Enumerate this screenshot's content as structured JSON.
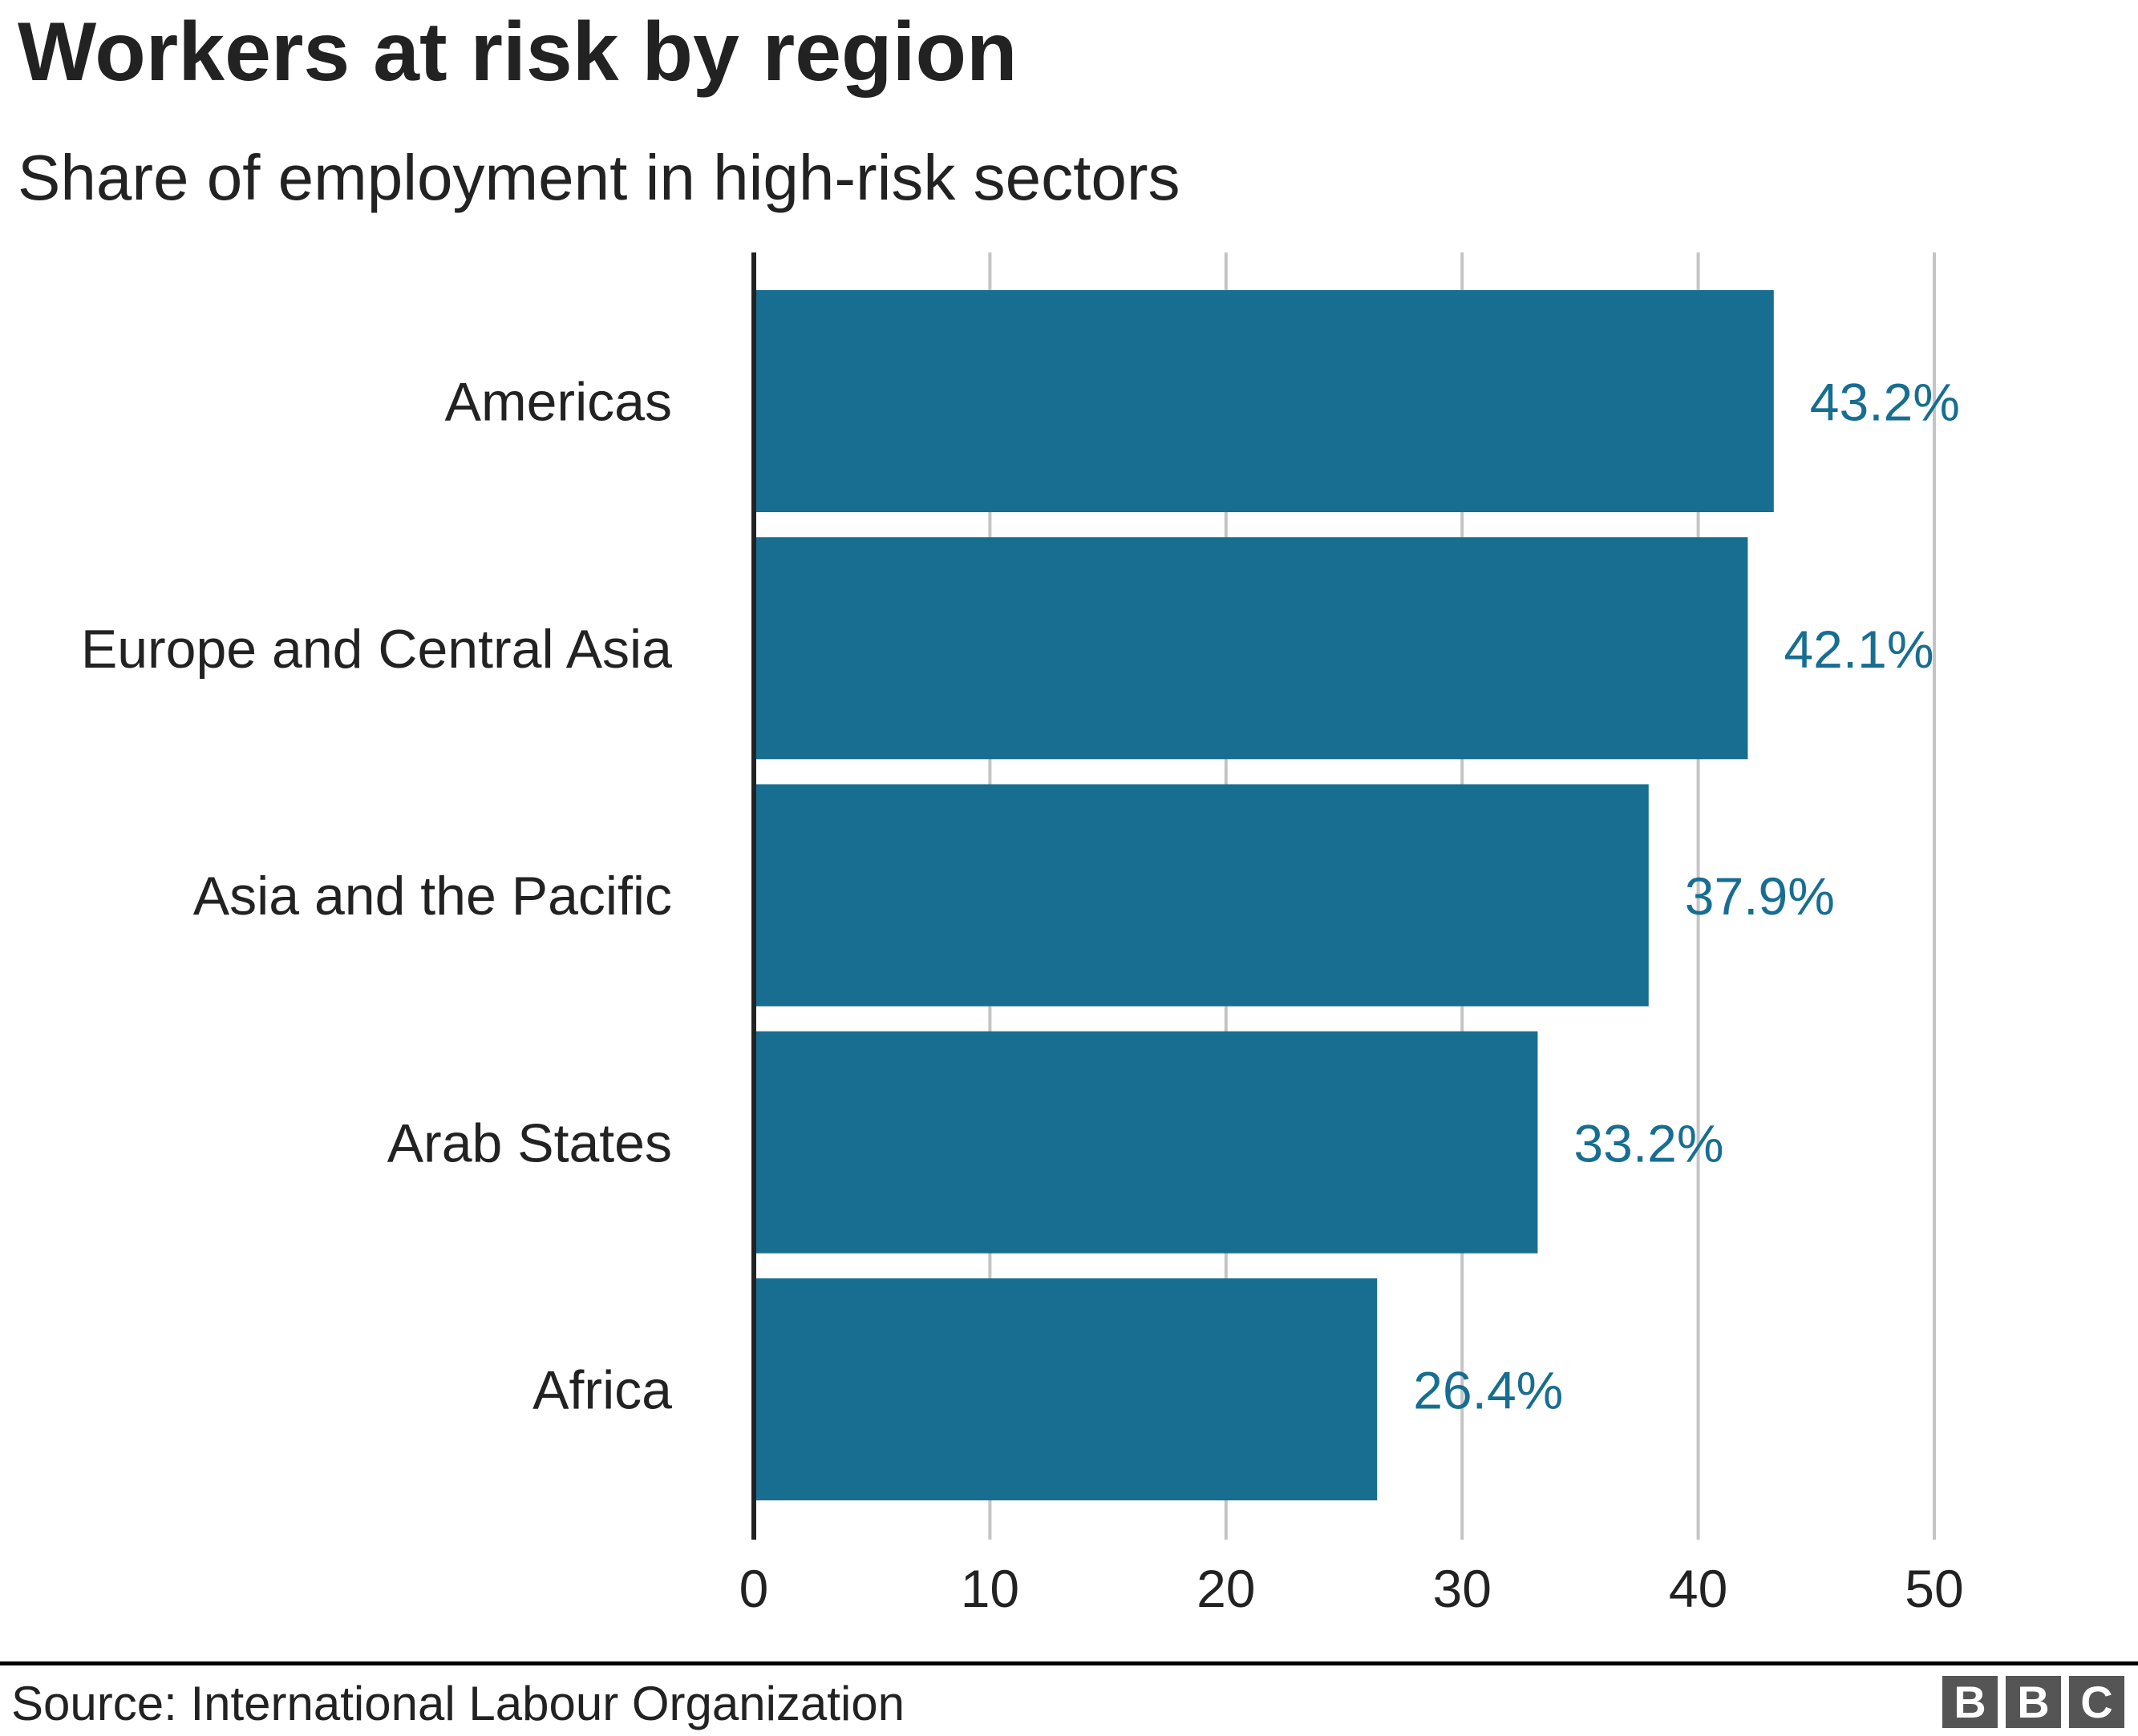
{
  "chart_data": {
    "type": "bar",
    "orientation": "horizontal",
    "title": "Workers at risk by region",
    "subtitle": "Share of employment in high-risk sectors",
    "categories": [
      "Americas",
      "Europe and Central Asia",
      "Asia and the Pacific",
      "Arab States",
      "Africa"
    ],
    "values": [
      43.2,
      42.1,
      37.9,
      33.2,
      26.4
    ],
    "data_labels": [
      "43.2%",
      "42.1%",
      "37.9%",
      "33.2%",
      "26.4%"
    ],
    "xlim": [
      0,
      50
    ],
    "xticks": [
      "0",
      "10",
      "20",
      "30",
      "40",
      "50"
    ],
    "xlabel": "",
    "ylabel": "",
    "grid": "vertical",
    "bar_color": "#176e90",
    "label_color": "#176e90"
  },
  "footer": {
    "source": "Source: International Labour Organization",
    "logo": [
      "B",
      "B",
      "C"
    ]
  }
}
